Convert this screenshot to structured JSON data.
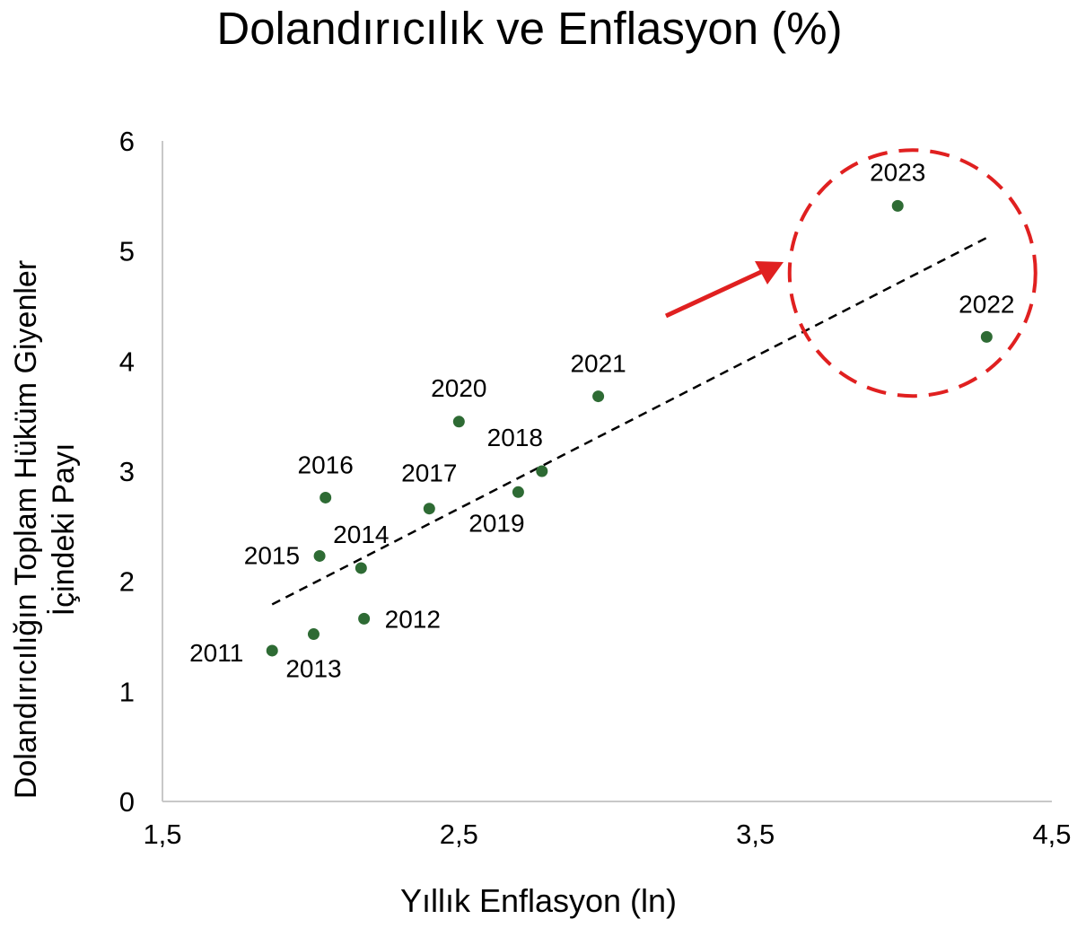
{
  "chart_data": {
    "type": "scatter",
    "title": "Dolandırıcılık ve Enflasyon (%)",
    "xlabel": "Yıllık Enflasyon (ln)",
    "ylabel_lines": [
      "Dolandırıcılığın Toplam Hüküm Giyenler",
      "İçindeki Payı"
    ],
    "xlim": [
      1.5,
      4.5
    ],
    "ylim": [
      0,
      6
    ],
    "x_ticks": [
      "1,5",
      "2,5",
      "3,5",
      "4,5"
    ],
    "y_ticks": [
      "0",
      "1",
      "2",
      "3",
      "4",
      "5",
      "6"
    ],
    "grid": false,
    "legend": "none",
    "point_color": "#2e6b34",
    "points": [
      {
        "label": "2011",
        "x": 1.87,
        "y": 1.37
      },
      {
        "label": "2012",
        "x": 2.18,
        "y": 1.66
      },
      {
        "label": "2013",
        "x": 2.01,
        "y": 1.52
      },
      {
        "label": "2014",
        "x": 2.17,
        "y": 2.12
      },
      {
        "label": "2015",
        "x": 2.03,
        "y": 2.23
      },
      {
        "label": "2016",
        "x": 2.05,
        "y": 2.76
      },
      {
        "label": "2017",
        "x": 2.4,
        "y": 2.66
      },
      {
        "label": "2018",
        "x": 2.78,
        "y": 3.0
      },
      {
        "label": "2019",
        "x": 2.7,
        "y": 2.81
      },
      {
        "label": "2020",
        "x": 2.5,
        "y": 3.45
      },
      {
        "label": "2021",
        "x": 2.97,
        "y": 3.68
      },
      {
        "label": "2022",
        "x": 4.28,
        "y": 4.22
      },
      {
        "label": "2023",
        "x": 3.98,
        "y": 5.41
      }
    ],
    "trendline": {
      "style": "dashed",
      "color": "#000000",
      "x": [
        1.87,
        4.28
      ],
      "y": [
        1.79,
        5.12
      ]
    },
    "highlight": {
      "shape": "dashed-circle",
      "color": "#e02020",
      "center": {
        "x": 4.03,
        "y": 4.8
      },
      "arrow": true
    }
  }
}
